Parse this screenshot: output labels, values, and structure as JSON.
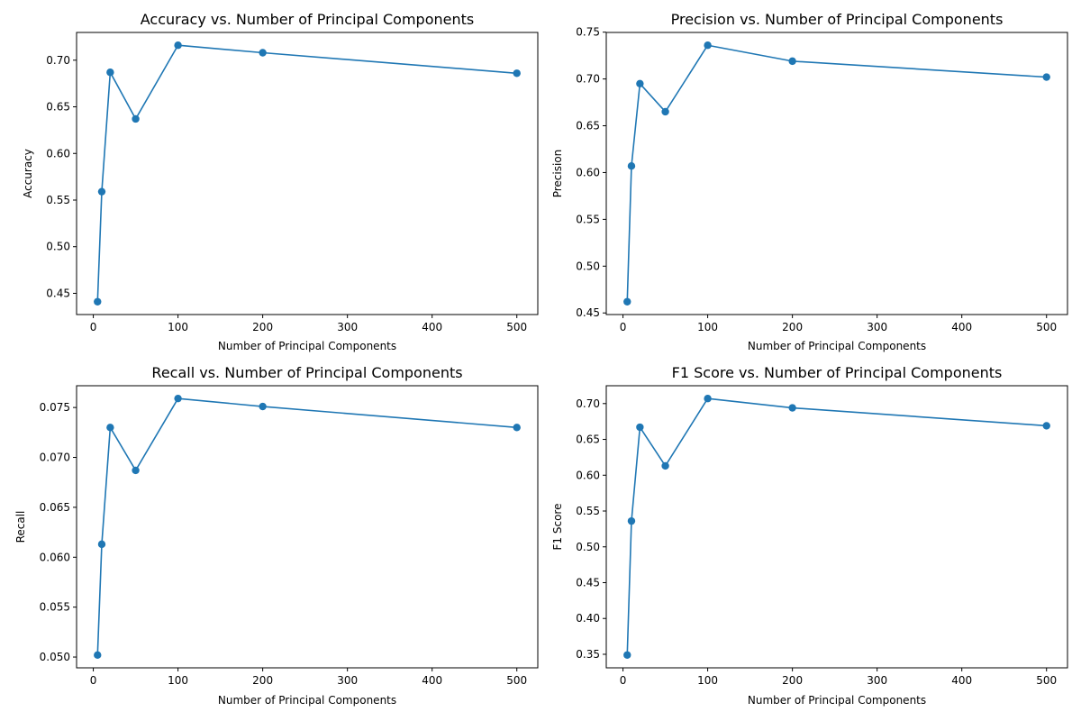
{
  "chart_data": [
    {
      "type": "line",
      "title": "Accuracy vs. Number of Principal Components",
      "xlabel": "Number of Principal Components",
      "ylabel": "Accuracy",
      "x": [
        5,
        10,
        20,
        50,
        100,
        200,
        500
      ],
      "series": [
        {
          "values": [
            0.441,
            0.559,
            0.687,
            0.637,
            0.716,
            0.708,
            0.686
          ]
        }
      ],
      "xticks": [
        0,
        100,
        200,
        300,
        400,
        500
      ],
      "yticks": [
        0.45,
        0.5,
        0.55,
        0.6,
        0.65,
        0.7
      ],
      "xlim": [
        -19.75,
        524.75
      ],
      "ylim": [
        0.42725,
        0.72975
      ],
      "grid": false,
      "marker": "circle",
      "color": "#1f77b4"
    },
    {
      "type": "line",
      "title": "Precision vs. Number of Principal Components",
      "xlabel": "Number of Principal Components",
      "ylabel": "Precision",
      "x": [
        5,
        10,
        20,
        50,
        100,
        200,
        500
      ],
      "series": [
        {
          "values": [
            0.462,
            0.607,
            0.695,
            0.665,
            0.736,
            0.719,
            0.702
          ]
        }
      ],
      "xticks": [
        0,
        100,
        200,
        300,
        400,
        500
      ],
      "yticks": [
        0.45,
        0.5,
        0.55,
        0.6,
        0.65,
        0.7,
        0.75
      ],
      "xlim": [
        -19.75,
        524.75
      ],
      "ylim": [
        0.4483,
        0.7497
      ],
      "grid": false,
      "marker": "circle",
      "color": "#1f77b4"
    },
    {
      "type": "line",
      "title": "Recall vs. Number of Principal Components",
      "xlabel": "Number of Principal Components",
      "ylabel": "Recall",
      "x": [
        5,
        10,
        20,
        50,
        100,
        200,
        500
      ],
      "series": [
        {
          "values": [
            0.0502,
            0.0613,
            0.073,
            0.0687,
            0.0759,
            0.0751,
            0.073
          ]
        }
      ],
      "xticks": [
        0,
        100,
        200,
        300,
        400,
        500
      ],
      "yticks": [
        0.05,
        0.055,
        0.06,
        0.065,
        0.07,
        0.075
      ],
      "tick_decimals": 3,
      "xlim": [
        -19.75,
        524.75
      ],
      "ylim": [
        0.04892,
        0.07718
      ],
      "grid": false,
      "marker": "circle",
      "color": "#1f77b4"
    },
    {
      "type": "line",
      "title": "F1 Score vs. Number of Principal Components",
      "xlabel": "Number of Principal Components",
      "ylabel": "F1 Score",
      "x": [
        5,
        10,
        20,
        50,
        100,
        200,
        500
      ],
      "series": [
        {
          "values": [
            0.349,
            0.536,
            0.667,
            0.613,
            0.707,
            0.694,
            0.669
          ]
        }
      ],
      "xticks": [
        0,
        100,
        200,
        300,
        400,
        500
      ],
      "yticks": [
        0.35,
        0.4,
        0.45,
        0.5,
        0.55,
        0.6,
        0.65,
        0.7
      ],
      "xlim": [
        -19.75,
        524.75
      ],
      "ylim": [
        0.3311,
        0.7249
      ],
      "grid": false,
      "marker": "circle",
      "color": "#1f77b4"
    }
  ]
}
